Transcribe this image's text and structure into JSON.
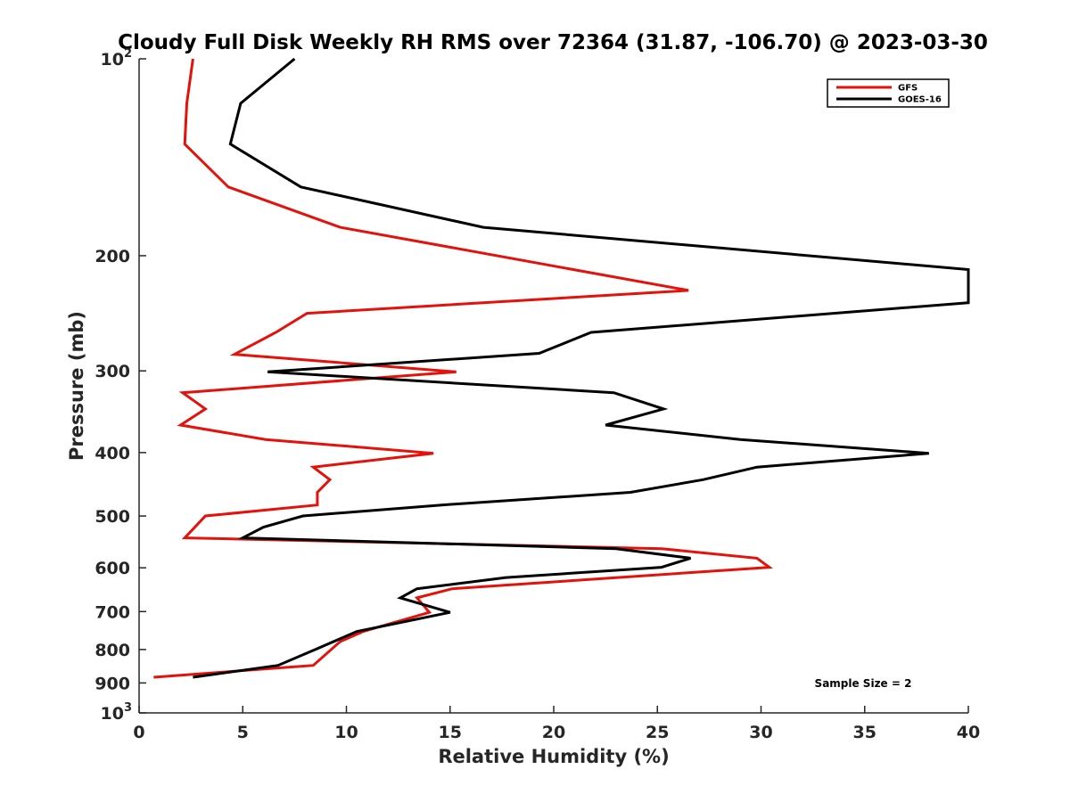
{
  "chart_data": {
    "type": "line",
    "title": "Cloudy Full Disk Weekly RH RMS over 72364 (31.87, -106.70) @ 2023-03-30",
    "xlabel": "Relative Humidity (%)",
    "ylabel": "Pressure (mb)",
    "xlim": [
      0,
      40
    ],
    "ylim": [
      100,
      1000
    ],
    "yscale": "log",
    "y_reversed": true,
    "x_ticks": [
      "0",
      "5",
      "10",
      "15",
      "20",
      "25",
      "30",
      "35",
      "40"
    ],
    "y_ticks": [
      {
        "value": 100,
        "base": "10",
        "exp": "2"
      },
      {
        "value": 200,
        "base": "200",
        "exp": ""
      },
      {
        "value": 300,
        "base": "300",
        "exp": ""
      },
      {
        "value": 400,
        "base": "400",
        "exp": ""
      },
      {
        "value": 500,
        "base": "500",
        "exp": ""
      },
      {
        "value": 600,
        "base": "600",
        "exp": ""
      },
      {
        "value": 700,
        "base": "700",
        "exp": ""
      },
      {
        "value": 800,
        "base": "800",
        "exp": ""
      },
      {
        "value": 900,
        "base": "900",
        "exp": ""
      },
      {
        "value": 1000,
        "base": "10",
        "exp": "3"
      }
    ],
    "grid": false,
    "legend_position": "top-right",
    "annotation": "Sample Size = 2",
    "series": [
      {
        "name": "GFS",
        "color": "#e3120b",
        "points": [
          [
            2.6,
            100
          ],
          [
            2.3,
            117
          ],
          [
            2.2,
            135
          ],
          [
            4.3,
            157
          ],
          [
            9.7,
            181
          ],
          [
            26.5,
            226
          ],
          [
            8.1,
            245
          ],
          [
            6.6,
            262
          ],
          [
            4.6,
            283
          ],
          [
            15.3,
            301
          ],
          [
            2.1,
            324
          ],
          [
            3.2,
            343
          ],
          [
            2.0,
            363
          ],
          [
            6.1,
            382
          ],
          [
            14.2,
            401
          ],
          [
            8.4,
            421
          ],
          [
            9.2,
            440
          ],
          [
            8.6,
            460
          ],
          [
            8.6,
            481
          ],
          [
            3.2,
            500
          ],
          [
            2.2,
            540
          ],
          [
            25.2,
            561
          ],
          [
            29.8,
            580
          ],
          [
            30.4,
            599
          ],
          [
            15.1,
            646
          ],
          [
            13.4,
            667
          ],
          [
            14.0,
            702
          ],
          [
            10.8,
            751
          ],
          [
            9.7,
            778
          ],
          [
            8.4,
            846
          ],
          [
            0.7,
            882
          ]
        ]
      },
      {
        "name": "GOES-16",
        "color": "#000000",
        "points": [
          [
            7.5,
            100
          ],
          [
            4.9,
            117
          ],
          [
            4.4,
            135
          ],
          [
            7.8,
            157
          ],
          [
            16.6,
            181
          ],
          [
            40.0,
            210
          ],
          [
            40.0,
            236
          ],
          [
            21.8,
            262
          ],
          [
            19.3,
            282
          ],
          [
            6.2,
            301
          ],
          [
            22.9,
            324
          ],
          [
            25.3,
            343
          ],
          [
            22.5,
            363
          ],
          [
            29.0,
            382
          ],
          [
            38.1,
            401
          ],
          [
            29.8,
            421
          ],
          [
            27.2,
            440
          ],
          [
            23.7,
            460
          ],
          [
            14.6,
            481
          ],
          [
            7.9,
            500
          ],
          [
            6.0,
            520
          ],
          [
            5.0,
            540
          ],
          [
            23.0,
            561
          ],
          [
            26.6,
            580
          ],
          [
            25.2,
            599
          ],
          [
            17.7,
            621
          ],
          [
            13.4,
            646
          ],
          [
            12.6,
            667
          ],
          [
            15.0,
            702
          ],
          [
            10.5,
            751
          ],
          [
            8.5,
            800
          ],
          [
            6.7,
            846
          ],
          [
            2.6,
            882
          ]
        ]
      }
    ]
  }
}
